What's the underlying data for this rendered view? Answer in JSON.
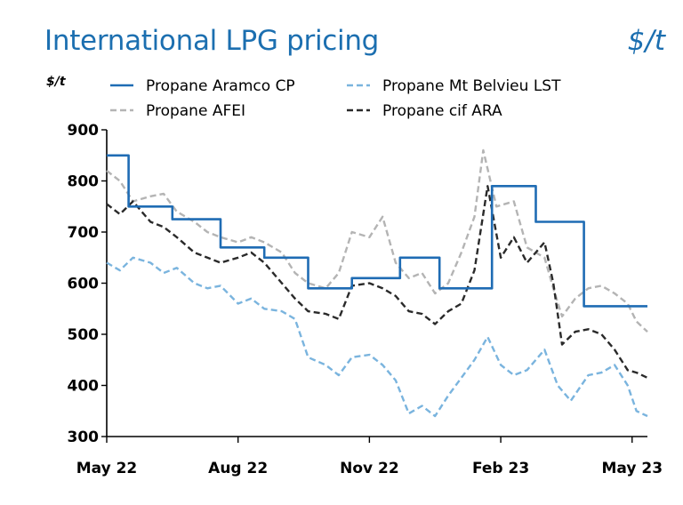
{
  "header": {
    "title": "International LPG pricing",
    "unit_right": "$/t",
    "unit_left": "$/t"
  },
  "chart_data": {
    "type": "line",
    "ylabel": "$/t",
    "ylim": [
      300,
      900
    ],
    "yticks": [
      300,
      400,
      500,
      600,
      700,
      800,
      900
    ],
    "xticks": [
      {
        "label": "May 22",
        "t": 0
      },
      {
        "label": "Aug 22",
        "t": 3
      },
      {
        "label": "Nov 22",
        "t": 6
      },
      {
        "label": "Feb 23",
        "t": 9
      },
      {
        "label": "May 23",
        "t": 12
      }
    ],
    "xlim": [
      0,
      12.35
    ],
    "legend_position": "top",
    "grid": false,
    "series": [
      {
        "name": "Propane Aramco CP",
        "color": "#1f6cb4",
        "style": "solid",
        "step": true,
        "points": [
          [
            0,
            850
          ],
          [
            0.5,
            750
          ],
          [
            1.5,
            725
          ],
          [
            2.6,
            670
          ],
          [
            3.6,
            650
          ],
          [
            4.6,
            590
          ],
          [
            5.6,
            610
          ],
          [
            6.7,
            650
          ],
          [
            7.6,
            590
          ],
          [
            8.8,
            790
          ],
          [
            9.8,
            720
          ],
          [
            10.9,
            555
          ],
          [
            12.35,
            555
          ]
        ]
      },
      {
        "name": "Propane Mt Belvieu LST",
        "color": "#7ab4de",
        "style": "dashed",
        "points": [
          [
            0,
            640
          ],
          [
            0.3,
            625
          ],
          [
            0.6,
            650
          ],
          [
            1,
            640
          ],
          [
            1.3,
            620
          ],
          [
            1.6,
            630
          ],
          [
            2,
            600
          ],
          [
            2.3,
            590
          ],
          [
            2.6,
            595
          ],
          [
            3,
            560
          ],
          [
            3.3,
            570
          ],
          [
            3.6,
            550
          ],
          [
            4,
            545
          ],
          [
            4.3,
            530
          ],
          [
            4.6,
            455
          ],
          [
            5,
            440
          ],
          [
            5.3,
            420
          ],
          [
            5.6,
            455
          ],
          [
            6,
            460
          ],
          [
            6.3,
            440
          ],
          [
            6.6,
            410
          ],
          [
            6.9,
            345
          ],
          [
            7.2,
            360
          ],
          [
            7.5,
            340
          ],
          [
            7.8,
            380
          ],
          [
            8.1,
            415
          ],
          [
            8.4,
            450
          ],
          [
            8.7,
            495
          ],
          [
            9,
            440
          ],
          [
            9.3,
            420
          ],
          [
            9.6,
            430
          ],
          [
            10,
            470
          ],
          [
            10.3,
            400
          ],
          [
            10.6,
            370
          ],
          [
            11,
            420
          ],
          [
            11.3,
            425
          ],
          [
            11.6,
            440
          ],
          [
            11.9,
            400
          ],
          [
            12.1,
            350
          ],
          [
            12.35,
            340
          ]
        ]
      },
      {
        "name": "Propane AFEI",
        "color": "#b4b4b4",
        "style": "dashed",
        "points": [
          [
            0,
            820
          ],
          [
            0.3,
            800
          ],
          [
            0.6,
            760
          ],
          [
            1,
            770
          ],
          [
            1.3,
            775
          ],
          [
            1.6,
            740
          ],
          [
            2,
            720
          ],
          [
            2.3,
            700
          ],
          [
            2.6,
            690
          ],
          [
            3,
            680
          ],
          [
            3.3,
            690
          ],
          [
            3.6,
            680
          ],
          [
            4,
            660
          ],
          [
            4.3,
            620
          ],
          [
            4.6,
            600
          ],
          [
            5,
            590
          ],
          [
            5.3,
            620
          ],
          [
            5.6,
            700
          ],
          [
            6,
            690
          ],
          [
            6.3,
            730
          ],
          [
            6.6,
            640
          ],
          [
            6.9,
            610
          ],
          [
            7.2,
            620
          ],
          [
            7.5,
            580
          ],
          [
            7.8,
            600
          ],
          [
            8.1,
            660
          ],
          [
            8.4,
            730
          ],
          [
            8.6,
            860
          ],
          [
            8.9,
            750
          ],
          [
            9.3,
            760
          ],
          [
            9.6,
            670
          ],
          [
            10,
            650
          ],
          [
            10.2,
            590
          ],
          [
            10.4,
            535
          ],
          [
            10.7,
            570
          ],
          [
            11,
            590
          ],
          [
            11.3,
            595
          ],
          [
            11.6,
            580
          ],
          [
            11.9,
            560
          ],
          [
            12.1,
            525
          ],
          [
            12.35,
            505
          ]
        ]
      },
      {
        "name": "Propane cif ARA",
        "color": "#2a2a2a",
        "style": "dashed",
        "points": [
          [
            0,
            755
          ],
          [
            0.3,
            735
          ],
          [
            0.6,
            760
          ],
          [
            1,
            720
          ],
          [
            1.3,
            710
          ],
          [
            1.6,
            690
          ],
          [
            2,
            660
          ],
          [
            2.3,
            650
          ],
          [
            2.6,
            640
          ],
          [
            3,
            650
          ],
          [
            3.3,
            660
          ],
          [
            3.6,
            640
          ],
          [
            4,
            600
          ],
          [
            4.3,
            570
          ],
          [
            4.6,
            545
          ],
          [
            5,
            540
          ],
          [
            5.3,
            530
          ],
          [
            5.6,
            595
          ],
          [
            6,
            600
          ],
          [
            6.3,
            590
          ],
          [
            6.6,
            575
          ],
          [
            6.9,
            545
          ],
          [
            7.2,
            540
          ],
          [
            7.5,
            520
          ],
          [
            7.8,
            545
          ],
          [
            8.1,
            560
          ],
          [
            8.4,
            625
          ],
          [
            8.7,
            790
          ],
          [
            9,
            650
          ],
          [
            9.3,
            690
          ],
          [
            9.6,
            640
          ],
          [
            10,
            680
          ],
          [
            10.2,
            600
          ],
          [
            10.4,
            480
          ],
          [
            10.7,
            505
          ],
          [
            11,
            510
          ],
          [
            11.3,
            500
          ],
          [
            11.6,
            470
          ],
          [
            11.9,
            430
          ],
          [
            12.1,
            425
          ],
          [
            12.35,
            415
          ]
        ]
      }
    ]
  }
}
